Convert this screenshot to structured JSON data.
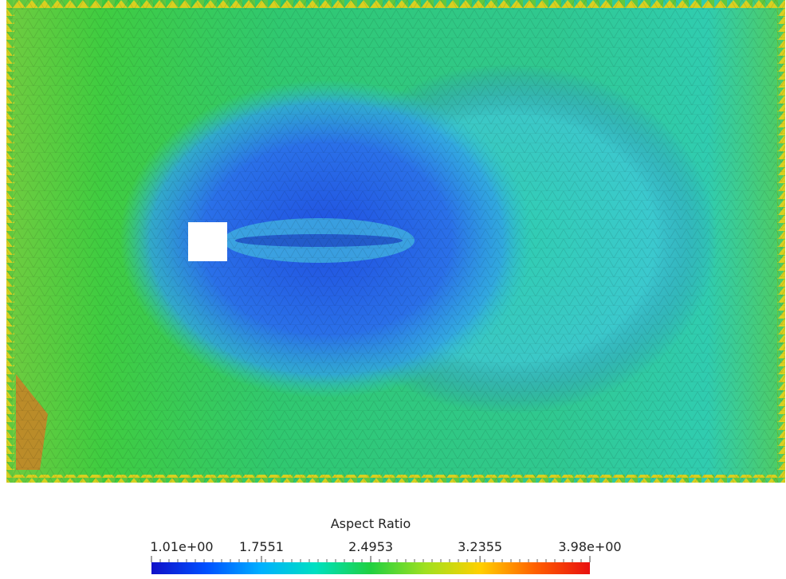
{
  "colorbar": {
    "title": "Aspect Ratio",
    "ticks": [
      {
        "value": 1.01,
        "label": "1.01e+00"
      },
      1.7551,
      2.4953,
      3.2355,
      {
        "value": 3.98,
        "label": "3.98e+00"
      }
    ],
    "colors": [
      "#1010c8",
      "#0050ff",
      "#00b0ff",
      "#00e0c0",
      "#20d040",
      "#a0e020",
      "#ffd000",
      "#ff6000",
      "#e81010"
    ]
  }
}
